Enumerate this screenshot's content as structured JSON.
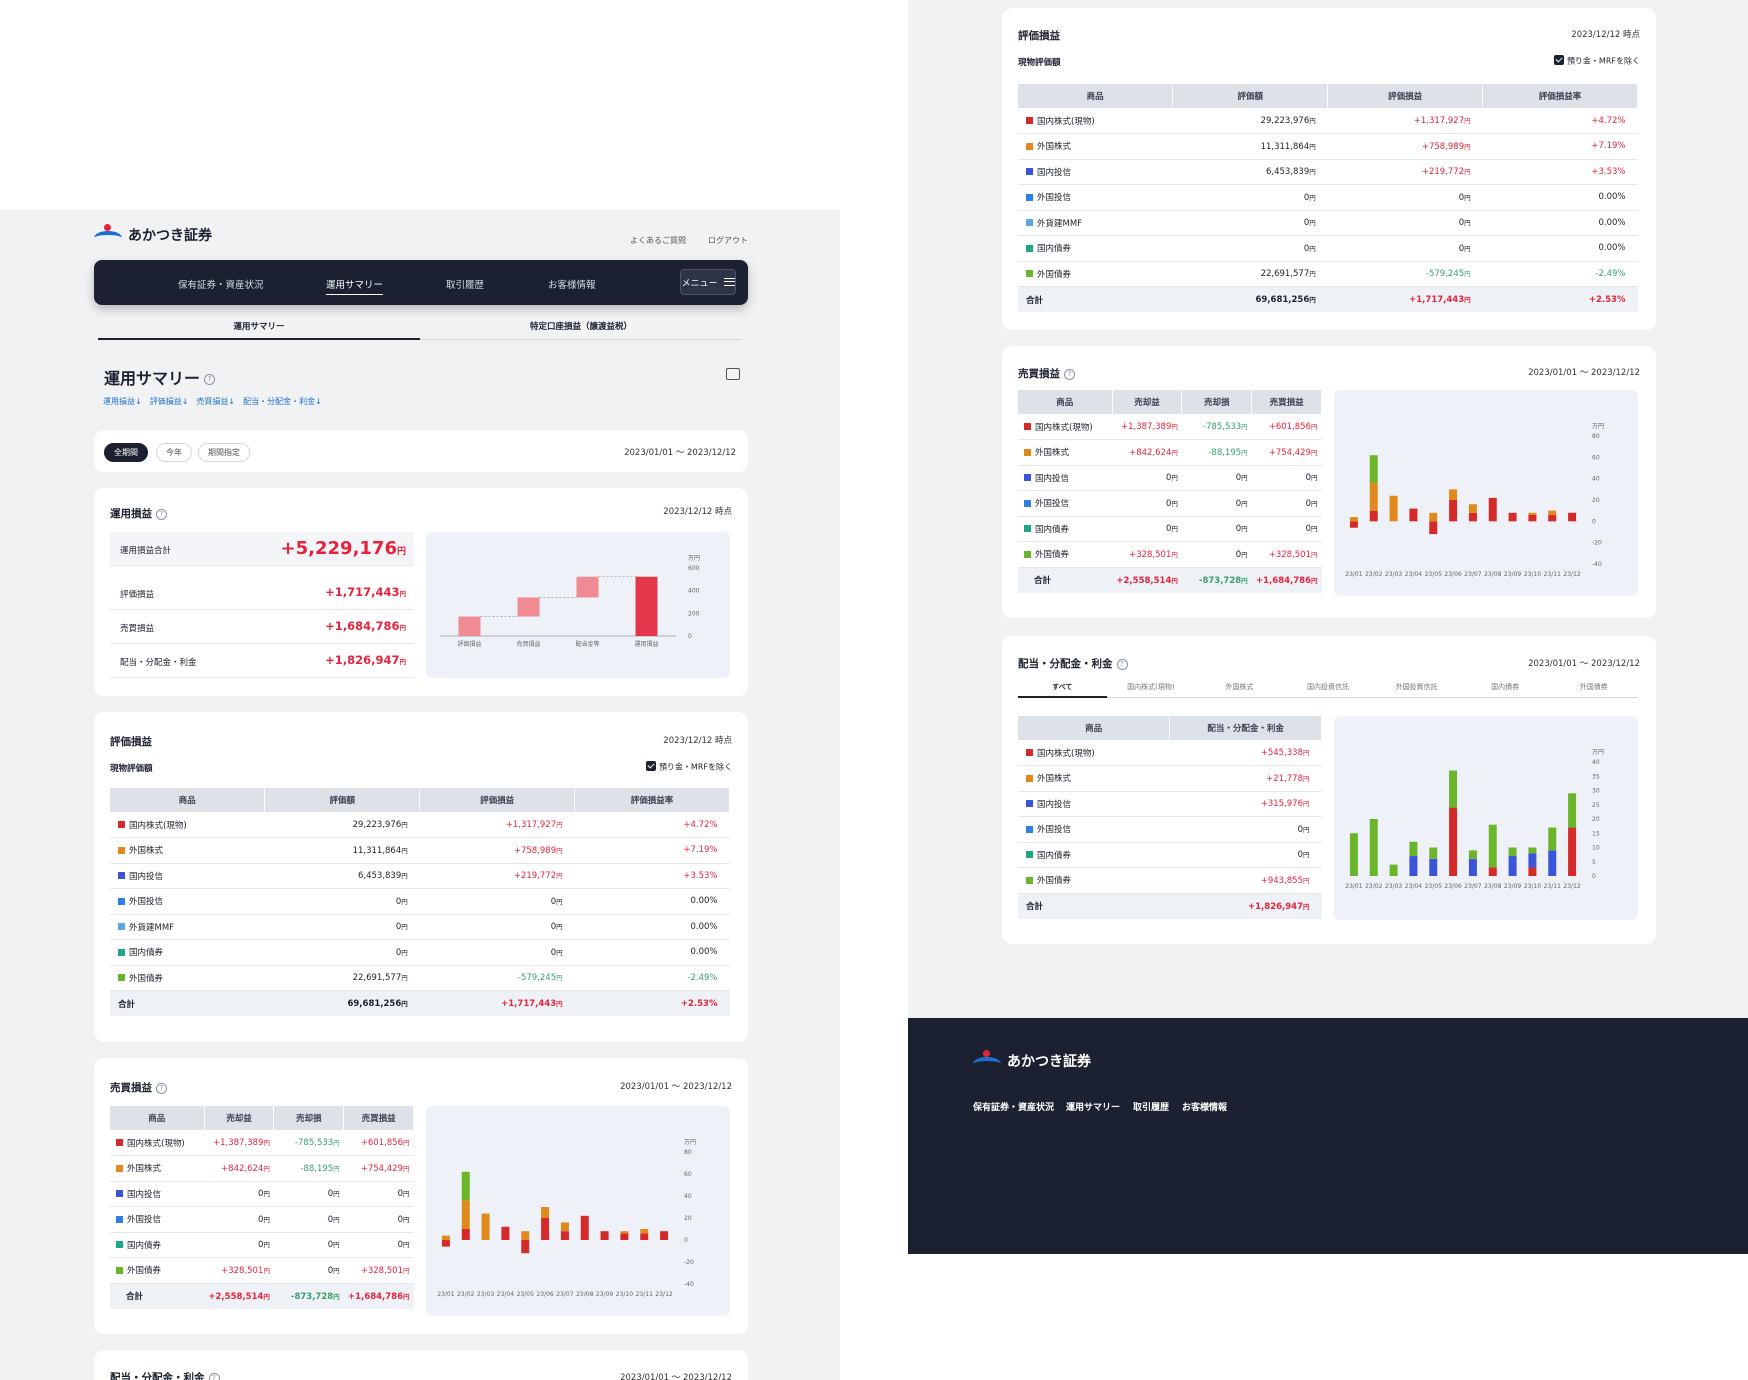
{
  "brand": {
    "name": "あかつき証券"
  },
  "header": {
    "faq": "よくあるご質問",
    "logout": "ログアウト"
  },
  "nav": {
    "items": [
      "保有証券・資産状況",
      "運用サマリー",
      "取引履歴",
      "お客様情報"
    ],
    "menu": "メニュー"
  },
  "subtabs": [
    "運用サマリー",
    "特定口座損益（譲渡益税）"
  ],
  "page": {
    "title": "運用サマリー",
    "anchors": [
      "運用損益↓",
      "評価損益↓",
      "売買損益↓",
      "配当・分配金・利金↓"
    ]
  },
  "period": {
    "pills": [
      "全期間",
      "今年",
      "期間指定"
    ],
    "range": "2023/01/01 〜 2023/12/12"
  },
  "pl": {
    "title": "運用損益",
    "asof": "2023/12/12 時点",
    "total_label": "運用損益合計",
    "total_value": "+5,229,176",
    "rows": [
      {
        "label": "評価損益",
        "value": "+1,717,443"
      },
      {
        "label": "売買損益",
        "value": "+1,684,786"
      },
      {
        "label": "配当・分配金・利金",
        "value": "+1,826,947"
      }
    ],
    "unit": "円"
  },
  "ep": {
    "title": "評価損益",
    "asof": "2023/12/12 時点",
    "subtitle": "現物評価額",
    "exclude": "預り金・MRFを除く",
    "headers": [
      "商品",
      "評価額",
      "評価損益",
      "評価損益率"
    ],
    "rows": [
      {
        "name": "国内株式(現物)",
        "color": "#d52a2a",
        "v": "29,223,976",
        "pl": "+1,317,927",
        "rate": "+4.72%",
        "s": "pos"
      },
      {
        "name": "外国株式",
        "color": "#e08a1e",
        "v": "11,311,864",
        "pl": "+758,989",
        "rate": "+7.19%",
        "s": "pos"
      },
      {
        "name": "国内投信",
        "color": "#3c55d8",
        "v": "6,453,839",
        "pl": "+219,772",
        "rate": "+3.53%",
        "s": "pos"
      },
      {
        "name": "外国投信",
        "color": "#2f7fe0",
        "v": "0",
        "pl": "0",
        "rate": "0.00%",
        "s": ""
      },
      {
        "name": "外貨建MMF",
        "color": "#5aa6e8",
        "v": "0",
        "pl": "0",
        "rate": "0.00%",
        "s": ""
      },
      {
        "name": "国内債券",
        "color": "#1fa68a",
        "v": "0",
        "pl": "0",
        "rate": "0.00%",
        "s": ""
      },
      {
        "name": "外国債券",
        "color": "#6bb52a",
        "v": "22,691,577",
        "pl": "-579,245",
        "rate": "-2.49%",
        "s": "neg"
      }
    ],
    "total": {
      "name": "合計",
      "v": "69,681,256",
      "pl": "+1,717,443",
      "rate": "+2.53%"
    }
  },
  "tp": {
    "title": "売買損益",
    "range": "2023/01/01 〜 2023/12/12",
    "headers": [
      "商品",
      "売却益",
      "売却損",
      "売買損益"
    ],
    "rows": [
      {
        "name": "国内株式(現物)",
        "color": "#d52a2a",
        "g": "+1,387,389",
        "l": "-785,533",
        "n": "+601,856"
      },
      {
        "name": "外国株式",
        "color": "#e08a1e",
        "g": "+842,624",
        "l": "-88,195",
        "n": "+754,429"
      },
      {
        "name": "国内投信",
        "color": "#3c55d8",
        "g": "0",
        "l": "0",
        "n": "0"
      },
      {
        "name": "外国投信",
        "color": "#2f7fe0",
        "g": "0",
        "l": "0",
        "n": "0"
      },
      {
        "name": "国内債券",
        "color": "#1fa68a",
        "g": "0",
        "l": "0",
        "n": "0"
      },
      {
        "name": "外国債券",
        "color": "#6bb52a",
        "g": "+328,501",
        "l": "0",
        "n": "+328,501"
      }
    ],
    "total": {
      "name": "合計",
      "g": "+2,558,514",
      "l": "-873,728",
      "n": "+1,684,786"
    }
  },
  "dv": {
    "title": "配当・分配金・利金",
    "range": "2023/01/01 〜 2023/12/12",
    "tabs": [
      "すべて",
      "国内株式(現物)",
      "外国株式",
      "国内投資信託",
      "外国投資信託",
      "国内債券",
      "外国債券"
    ],
    "headers": [
      "商品",
      "配当・分配金・利金"
    ],
    "rows": [
      {
        "name": "国内株式(現物)",
        "color": "#d52a2a",
        "v": "+545,338"
      },
      {
        "name": "外国株式",
        "color": "#e08a1e",
        "v": "+21,778"
      },
      {
        "name": "国内投信",
        "color": "#3c55d8",
        "v": "+315,976"
      },
      {
        "name": "外国投信",
        "color": "#2f7fe0",
        "v": "0"
      },
      {
        "name": "国内債券",
        "color": "#1fa68a",
        "v": "0"
      },
      {
        "name": "外国債券",
        "color": "#6bb52a",
        "v": "+943,855"
      }
    ],
    "total": {
      "name": "合計",
      "v": "+1,826,947"
    }
  },
  "chart_data": [
    {
      "type": "bar",
      "subtype": "waterfall",
      "unit": "万円",
      "categories": [
        "評価損益",
        "売買損益",
        "配当金等",
        "運用損益"
      ],
      "values": [
        171.7,
        168.5,
        182.7,
        522.9
      ],
      "yticks": [
        0,
        200,
        400,
        600
      ],
      "ylim": [
        0,
        600
      ]
    },
    {
      "type": "bar",
      "subtype": "stacked",
      "unit": "万円",
      "categories": [
        "23/01",
        "23/02",
        "23/03",
        "23/04",
        "23/05",
        "23/06",
        "23/07",
        "23/08",
        "23/09",
        "23/10",
        "23/11",
        "23/12"
      ],
      "yticks": [
        80,
        60,
        40,
        20,
        0,
        -20,
        -40
      ],
      "ylim": [
        -40,
        80
      ],
      "series": [
        {
          "color": "#d52a2a",
          "values": [
            -6,
            10,
            0,
            12,
            -12,
            20,
            8,
            22,
            8,
            6,
            6,
            8
          ]
        },
        {
          "color": "#e08a1e",
          "values": [
            4,
            26,
            24,
            0,
            8,
            10,
            8,
            0,
            0,
            2,
            4,
            0
          ]
        },
        {
          "color": "#6bb52a",
          "values": [
            0,
            26,
            0,
            0,
            0,
            0,
            0,
            0,
            0,
            0,
            0,
            0
          ]
        }
      ]
    },
    {
      "type": "bar",
      "subtype": "stacked",
      "unit": "万円",
      "categories": [
        "23/01",
        "23/02",
        "23/03",
        "23/04",
        "23/05",
        "23/06",
        "23/07",
        "23/08",
        "23/09",
        "23/10",
        "23/11",
        "23/12"
      ],
      "yticks": [
        40,
        35,
        30,
        25,
        20,
        15,
        10,
        5,
        0
      ],
      "ylim": [
        0,
        40
      ],
      "series": [
        {
          "color": "#d52a2a",
          "values": [
            0,
            0,
            0,
            0,
            0,
            24,
            0,
            3,
            0,
            3,
            0,
            17
          ]
        },
        {
          "color": "#3c55d8",
          "values": [
            0,
            0,
            0,
            7,
            6,
            0,
            6,
            0,
            7,
            5,
            9,
            0
          ]
        },
        {
          "color": "#6bb52a",
          "values": [
            15,
            20,
            4,
            5,
            4,
            13,
            3,
            15,
            3,
            2,
            8,
            12
          ]
        }
      ]
    }
  ]
}
